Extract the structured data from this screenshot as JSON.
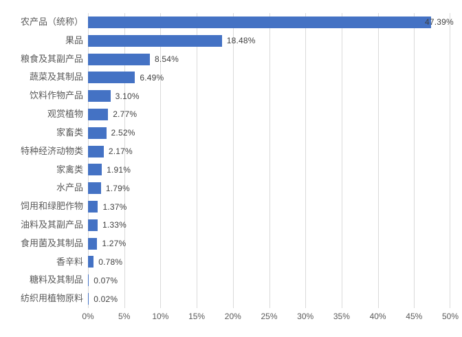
{
  "chart_data": {
    "type": "bar",
    "orientation": "horizontal",
    "title": "",
    "xlabel": "",
    "ylabel": "",
    "categories": [
      "农产品（统称）",
      "果品",
      "粮食及其副产品",
      "蔬菜及其制品",
      "饮料作物产品",
      "观赏植物",
      "家畜类",
      "特种经济动物类",
      "家禽类",
      "水产品",
      "饲用和绿肥作物",
      "油料及其副产品",
      "食用菌及其制品",
      "香辛料",
      "糖料及其制品",
      "纺织用植物原料"
    ],
    "values": [
      47.39,
      18.48,
      8.54,
      6.49,
      3.1,
      2.77,
      2.52,
      2.17,
      1.91,
      1.79,
      1.37,
      1.33,
      1.27,
      0.78,
      0.07,
      0.02
    ],
    "data_labels": [
      "47.39%",
      "18.48%",
      "8.54%",
      "6.49%",
      "3.10%",
      "2.77%",
      "2.52%",
      "2.17%",
      "1.91%",
      "1.79%",
      "1.37%",
      "1.33%",
      "1.27%",
      "0.78%",
      "0.07%",
      "0.02%"
    ],
    "xlim": [
      0,
      50
    ],
    "xticks": [
      "0%",
      "5%",
      "10%",
      "15%",
      "20%",
      "25%",
      "30%",
      "35%",
      "40%",
      "45%",
      "50%"
    ],
    "grid": "vertical",
    "legend": "none",
    "colors": {
      "bar": "#4472C4",
      "gridline": "#D9D9D9",
      "category_text": "#595959",
      "tick_text": "#595959",
      "value_text": "#404040",
      "background": "#FFFFFF"
    }
  }
}
